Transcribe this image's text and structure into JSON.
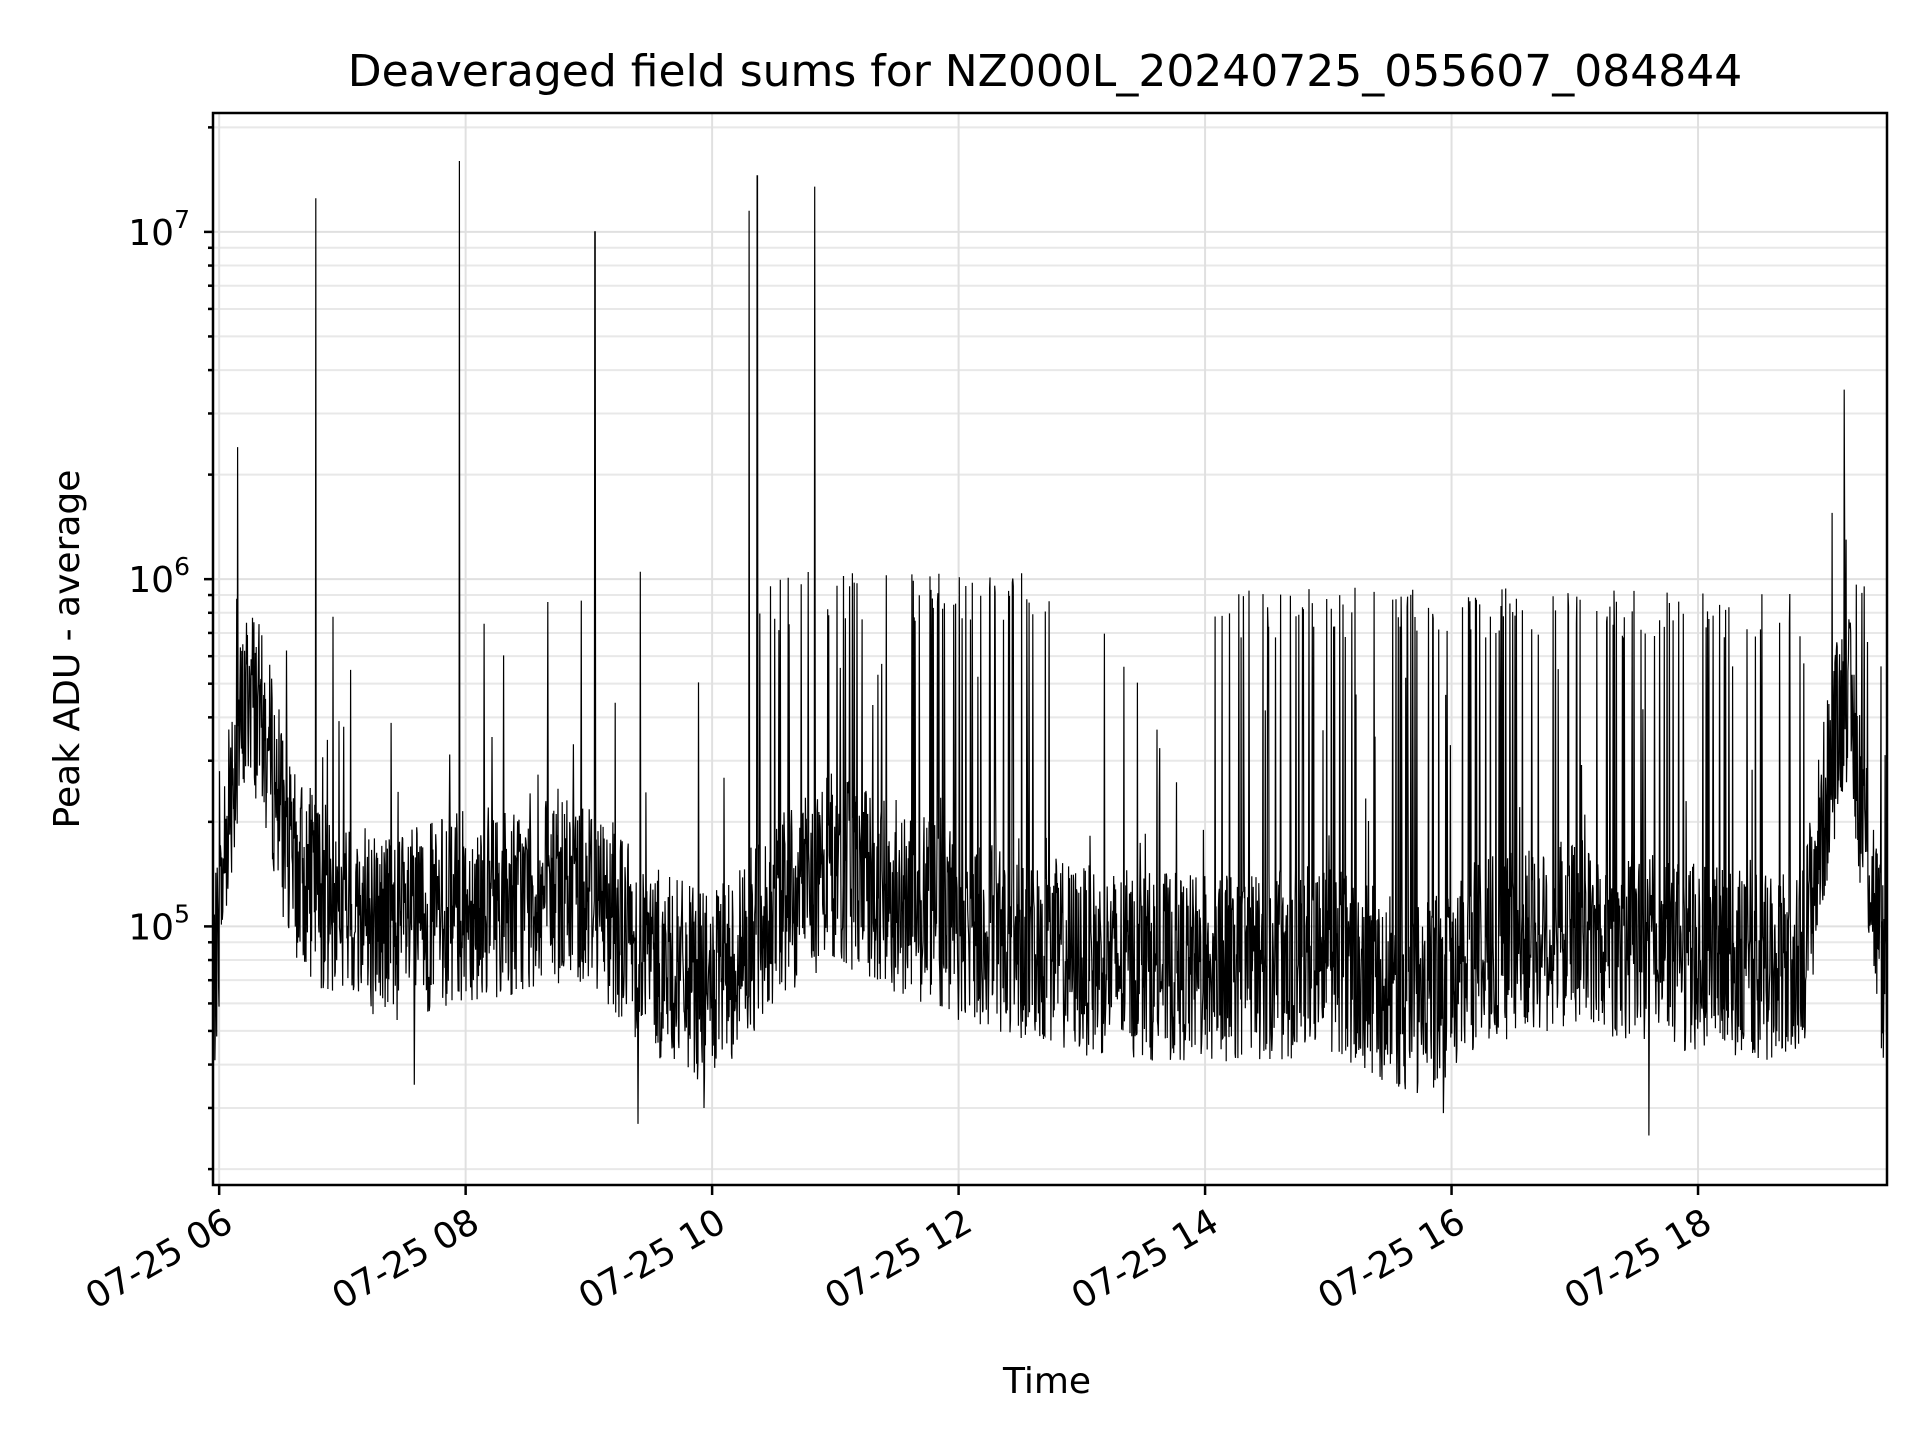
{
  "chart_data": {
    "type": "line",
    "title": "Deaveraged field sums for NZ000L_20240725_055607_084844",
    "xlabel": "Time",
    "ylabel": "Peak ADU - average",
    "yscale": "log",
    "ylim": [
      18000,
      22000000
    ],
    "xlim": [
      "07-25 05:57",
      "07-25 19:32"
    ],
    "grid": true,
    "legend": "none",
    "line_color": "#000000",
    "x_ticks": [
      "07-25 06",
      "07-25 08",
      "07-25 10",
      "07-25 12",
      "07-25 14",
      "07-25 16",
      "07-25 18"
    ],
    "y_ticks": [
      {
        "value": 100000,
        "base": "10",
        "exp": "5"
      },
      {
        "value": 1000000,
        "base": "10",
        "exp": "6"
      },
      {
        "value": 10000000,
        "base": "10",
        "exp": "7"
      }
    ],
    "baseline": [
      [
        "07-25 05:57",
        60000
      ],
      [
        "07-25 06:05",
        250000
      ],
      [
        "07-25 06:15",
        500000
      ],
      [
        "07-25 06:25",
        300000
      ],
      [
        "07-25 06:35",
        150000
      ],
      [
        "07-25 07:00",
        110000
      ],
      [
        "07-25 07:30",
        100000
      ],
      [
        "07-25 08:00",
        115000
      ],
      [
        "07-25 08:30",
        120000
      ],
      [
        "07-25 09:00",
        130000
      ],
      [
        "07-25 09:30",
        80000
      ],
      [
        "07-25 10:00",
        65000
      ],
      [
        "07-25 10:30",
        110000
      ],
      [
        "07-25 11:00",
        150000
      ],
      [
        "07-25 11:30",
        120000
      ],
      [
        "07-25 12:00",
        100000
      ],
      [
        "07-25 12:30",
        90000
      ],
      [
        "07-25 13:00",
        80000
      ],
      [
        "07-25 14:00",
        75000
      ],
      [
        "07-25 15:00",
        80000
      ],
      [
        "07-25 15:45",
        60000
      ],
      [
        "07-25 16:15",
        85000
      ],
      [
        "07-25 17:00",
        95000
      ],
      [
        "07-25 18:00",
        80000
      ],
      [
        "07-25 18:50",
        75000
      ],
      [
        "07-25 19:05",
        300000
      ],
      [
        "07-25 19:12",
        500000
      ],
      [
        "07-25 19:22",
        180000
      ],
      [
        "07-25 19:32",
        60000
      ]
    ],
    "spikes": [
      {
        "x": "07-25 06:09",
        "y": 2400000
      },
      {
        "x": "07-25 06:47",
        "y": 12500000
      },
      {
        "x": "07-25 07:57",
        "y": 16000000
      },
      {
        "x": "07-25 09:03",
        "y": 10000000
      },
      {
        "x": "07-25 09:25",
        "y": 1050000
      },
      {
        "x": "07-25 10:18",
        "y": 11500000
      },
      {
        "x": "07-25 10:22",
        "y": 14500000
      },
      {
        "x": "07-25 10:50",
        "y": 13500000
      },
      {
        "x": "07-25 19:12",
        "y": 1300000
      }
    ],
    "dense_peak_band": [
      {
        "from": "07-25 10:20",
        "to": "07-25 12:45",
        "y": 1000000
      },
      {
        "from": "07-25 14:00",
        "to": "07-25 18:50",
        "y": 900000
      }
    ],
    "dips": [
      {
        "x": "07-25 07:35",
        "y": 35000
      },
      {
        "x": "07-25 09:24",
        "y": 27000
      },
      {
        "x": "07-25 09:56",
        "y": 30000
      },
      {
        "x": "07-25 15:56",
        "y": 29000
      },
      {
        "x": "07-25 17:36",
        "y": 25000
      }
    ]
  }
}
